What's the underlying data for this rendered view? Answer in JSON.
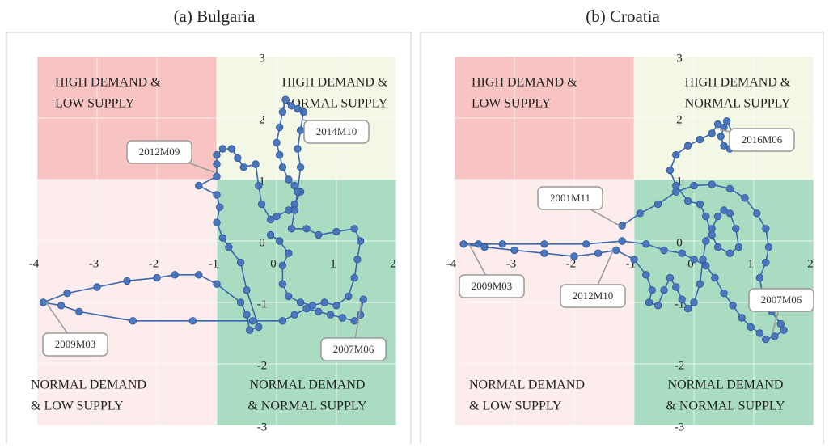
{
  "chart_data": [
    {
      "type": "scatter",
      "title": "(a) Bulgaria",
      "color": "#4a76bd",
      "xlim": [
        -4,
        2
      ],
      "ylim": [
        -3,
        3
      ],
      "xticks": [
        -4,
        -3,
        -2,
        -1,
        0,
        1,
        2
      ],
      "yticks": [
        -3,
        -2,
        -1,
        0,
        1,
        2,
        3
      ],
      "grid": true,
      "split": [
        -1,
        1
      ],
      "regions": [
        {
          "label": [
            "HIGH DEMAND &",
            "LOW SUPPLY"
          ],
          "color": "#f7c3c3"
        },
        {
          "label": [
            "HIGH DEMAND &",
            "NORMAL SUPPLY"
          ],
          "color": "#f3f8e6"
        },
        {
          "label": [
            "NORMAL DEMAND",
            "& LOW SUPPLY"
          ],
          "color": "#fcecec"
        },
        {
          "label": [
            "NORMAL DEMAND",
            "& NORMAL SUPPLY"
          ],
          "color": "#a9dcc0"
        }
      ],
      "annotations": [
        "2012M09",
        "2014M10",
        "2009M03",
        "2007M06"
      ],
      "x": [
        1.45,
        1.4,
        1.3,
        1.1,
        0.9,
        0.7,
        0.5,
        0.3,
        0.1,
        -0.4,
        -1.4,
        -2.4,
        -3.3,
        -3.6,
        -3.9,
        -3.5,
        -3.0,
        -2.5,
        -2.0,
        -1.7,
        -1.3,
        -1.0,
        -0.6,
        -0.5,
        -0.45,
        -0.3,
        -0.5,
        -0.6,
        -0.8,
        -0.9,
        -1.0,
        -0.95,
        -1.0,
        -1.3,
        -1.0,
        -1.0,
        -1.0,
        -0.9,
        -0.75,
        -0.65,
        -0.55,
        -0.35,
        -0.3,
        -0.25,
        -0.1,
        0.0,
        0.2,
        0.3,
        0.4,
        0.3,
        0.2,
        0.1,
        0.05,
        0.0,
        0.05,
        0.1,
        0.15,
        0.25,
        0.35,
        0.45,
        0.4,
        0.35,
        0.4,
        0.35,
        0.3,
        0.25,
        0.5,
        0.7,
        1.0,
        1.3,
        1.4,
        1.35,
        1.3,
        1.2,
        1.0,
        0.8,
        0.6,
        0.4,
        0.2,
        0.1,
        0.1,
        0.2,
        0.05,
        -0.1
      ],
      "values": [
        -0.95,
        -1.2,
        -1.3,
        -1.25,
        -1.2,
        -1.15,
        -1.1,
        -1.2,
        -1.3,
        -1.3,
        -1.3,
        -1.3,
        -1.15,
        -1.05,
        -1.0,
        -0.85,
        -0.75,
        -0.65,
        -0.6,
        -0.55,
        -0.55,
        -0.7,
        -1.0,
        -1.2,
        -1.45,
        -1.4,
        -0.8,
        -0.35,
        -0.1,
        0.05,
        0.3,
        0.55,
        0.75,
        0.9,
        1.05,
        1.25,
        1.4,
        1.5,
        1.5,
        1.35,
        1.2,
        1.25,
        0.9,
        0.6,
        0.35,
        0.4,
        0.5,
        0.6,
        0.8,
        0.9,
        1.0,
        1.2,
        1.4,
        1.6,
        1.85,
        2.1,
        2.3,
        2.2,
        2.15,
        2.1,
        1.8,
        1.5,
        1.2,
        0.8,
        0.5,
        0.2,
        0.2,
        0.1,
        0.15,
        0.2,
        0.0,
        -0.3,
        -0.6,
        -0.9,
        -1.05,
        -1.0,
        -1.05,
        -1.0,
        -0.9,
        -0.7,
        -0.4,
        -0.2,
        0.0,
        0.1
      ]
    },
    {
      "type": "scatter",
      "title": "(b) Croatia",
      "color": "#4a76bd",
      "xlim": [
        -4,
        2
      ],
      "ylim": [
        -3,
        3
      ],
      "xticks": [
        -4,
        -3,
        -2,
        -1,
        0,
        1,
        2
      ],
      "yticks": [
        -3,
        -2,
        -1,
        0,
        1,
        2,
        3
      ],
      "grid": true,
      "split": [
        -1,
        1
      ],
      "regions": [
        {
          "label": [
            "HIGH DEMAND &",
            "LOW SUPPLY"
          ],
          "color": "#f7c3c3"
        },
        {
          "label": [
            "HIGH DEMAND &",
            "NORMAL SUPPLY"
          ],
          "color": "#f3f8e6"
        },
        {
          "label": [
            "NORMAL DEMAND",
            "& LOW SUPPLY"
          ],
          "color": "#fcecec"
        },
        {
          "label": [
            "NORMAL DEMAND",
            "& NORMAL SUPPLY"
          ],
          "color": "#a9dcc0"
        }
      ],
      "annotations": [
        "2016M06",
        "2001M11",
        "2009M03",
        "2012M10",
        "2007M06"
      ],
      "x": [
        -1.2,
        -0.9,
        -0.6,
        -0.3,
        0.0,
        0.3,
        0.6,
        0.85,
        1.05,
        1.2,
        1.25,
        1.2,
        1.1,
        1.15,
        1.3,
        1.45,
        1.5,
        1.35,
        1.2,
        1.1,
        0.95,
        0.8,
        0.65,
        0.5,
        0.35,
        0.2,
        0.0,
        -0.2,
        -0.5,
        -0.8,
        -1.2,
        -1.8,
        -2.5,
        -3.2,
        -3.6,
        -3.85,
        -3.5,
        -3.0,
        -2.5,
        -2.0,
        -1.6,
        -1.3,
        -1.0,
        -0.8,
        -0.7,
        -0.75,
        -0.6,
        -0.5,
        -0.4,
        -0.3,
        -0.2,
        -0.1,
        0.0,
        0.1,
        0.15,
        0.2,
        0.3,
        0.4,
        0.5,
        0.6,
        0.7,
        0.75,
        0.6,
        0.4,
        0.3,
        0.2,
        0.1,
        -0.1,
        -0.3,
        -0.4,
        -0.3,
        -0.1,
        0.1,
        0.3,
        0.4,
        0.5,
        0.45,
        0.5,
        0.6,
        0.7,
        0.65,
        0.55
      ],
      "values": [
        0.25,
        0.45,
        0.6,
        0.8,
        0.9,
        0.92,
        0.85,
        0.7,
        0.45,
        0.2,
        -0.1,
        -0.35,
        -0.6,
        -0.9,
        -1.15,
        -1.35,
        -1.45,
        -1.55,
        -1.6,
        -1.5,
        -1.4,
        -1.25,
        -1.05,
        -0.85,
        -0.6,
        -0.4,
        -0.3,
        -0.2,
        -0.15,
        -0.05,
        0.0,
        -0.05,
        -0.05,
        -0.05,
        -0.05,
        -0.05,
        -0.1,
        -0.15,
        -0.2,
        -0.25,
        -0.2,
        -0.15,
        -0.3,
        -0.55,
        -0.8,
        -1.0,
        -1.05,
        -0.8,
        -0.6,
        -0.75,
        -0.95,
        -1.1,
        -1.0,
        -0.7,
        -0.3,
        0.0,
        0.2,
        0.4,
        0.5,
        0.45,
        0.2,
        -0.1,
        -0.2,
        -0.1,
        0.1,
        0.4,
        0.6,
        0.65,
        0.9,
        1.15,
        1.4,
        1.55,
        1.65,
        1.75,
        1.9,
        1.85,
        1.7,
        1.55,
        1.5,
        1.6,
        1.75,
        1.95
      ]
    }
  ]
}
